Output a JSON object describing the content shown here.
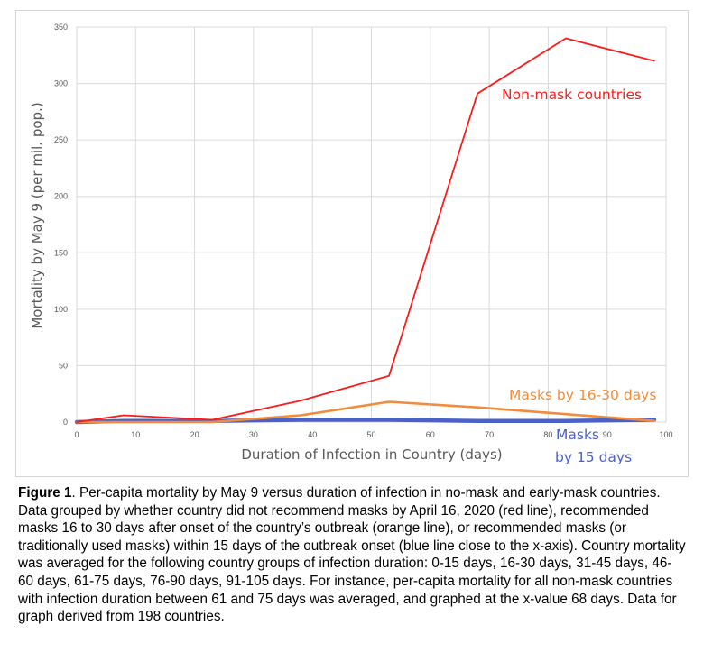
{
  "chart_data": {
    "type": "line",
    "title": "",
    "xlabel": "Duration of Infection  in Country (days)",
    "ylabel": "Mortality by May 9 (per mil. pop.)",
    "xlim": [
      0,
      100
    ],
    "ylim": [
      0,
      350
    ],
    "xticks": [
      0,
      10,
      20,
      30,
      40,
      50,
      60,
      70,
      80,
      90,
      100
    ],
    "yticks": [
      0,
      50,
      100,
      150,
      200,
      250,
      300,
      350
    ],
    "grid": true,
    "series": [
      {
        "name": "Non-mask countries",
        "color": "#ff1a1a",
        "x": [
          0,
          8,
          23,
          38,
          53,
          68,
          83,
          98
        ],
        "y": [
          0,
          6,
          2,
          19,
          41,
          291,
          340,
          320
        ]
      },
      {
        "name": "Masks by 16-30 days",
        "color": "#f28c3c",
        "x": [
          0,
          8,
          23,
          38,
          53,
          68,
          83,
          98
        ],
        "y": [
          0,
          0,
          0,
          6,
          18,
          13,
          7,
          1
        ]
      },
      {
        "name": "Masks by 15 days",
        "color": "#4a62c8",
        "x": [
          0,
          8,
          23,
          38,
          53,
          68,
          83,
          98
        ],
        "y": [
          0,
          1,
          1,
          2,
          2,
          1,
          1,
          2
        ]
      }
    ],
    "annotations": [
      {
        "text": "Non-mask countries",
        "color": "#ff1a1a"
      },
      {
        "text": "Masks by 16-30 days",
        "color": "#f28c3c"
      },
      {
        "text": "Masks",
        "color": "#4a62c8"
      },
      {
        "text": "by 15 days",
        "color": "#4a62c8"
      }
    ]
  },
  "caption": {
    "label": "Figure 1",
    "text": ". Per-capita mortality by May 9 versus duration of infection in no-mask and early-mask countries.  Data grouped by whether country did not recommend masks by April 16, 2020 (red line), recommended masks 16 to 30 days after onset of the country’s outbreak (orange line), or recommended masks (or traditionally used masks) within 15 days of the outbreak onset (blue line close to the x-axis).  Country mortality was averaged for the following country groups of infection duration: 0-15 days, 16-30 days, 31-45 days, 46-60 days, 61-75 days, 76-90 days, 91-105 days.  For instance, per-capita mortality for all non-mask countries with infection duration between 61 and 75 days was averaged, and graphed at the x-value 68 days.  Data for graph derived from 198 countries."
  }
}
